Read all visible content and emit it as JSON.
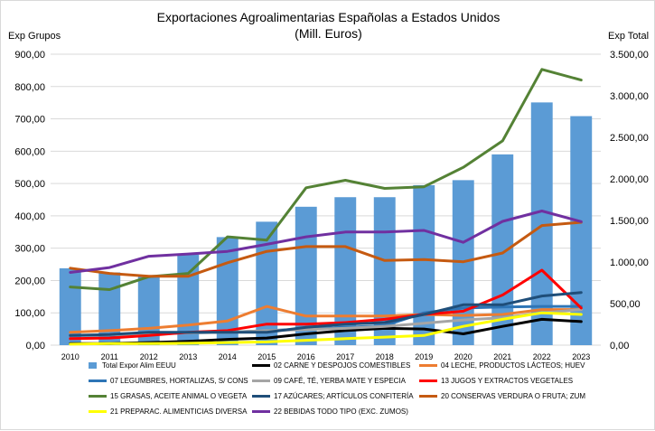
{
  "chart_data": {
    "type": "bar+line",
    "title_line1": "Exportaciones Agroalimentarias Españolas a Estados Unidos",
    "title_line2": "(Mill. Euros)",
    "ylabel_left": "Exp Grupos",
    "ylabel_right": "Exp Total",
    "ylim_left": [
      0,
      900
    ],
    "ylim_right": [
      0,
      3500
    ],
    "yticks_left": [
      "0,00",
      "100,00",
      "200,00",
      "300,00",
      "400,00",
      "500,00",
      "600,00",
      "700,00",
      "800,00",
      "900,00"
    ],
    "yticks_right": [
      "0,00",
      "500,00",
      "1.000,00",
      "1.500,00",
      "2.000,00",
      "2.500,00",
      "3.000,00",
      "3.500,00"
    ],
    "categories": [
      "2010",
      "2011",
      "2012",
      "2013",
      "2014",
      "2015",
      "2016",
      "2017",
      "2018",
      "2019",
      "2020",
      "2021",
      "2022",
      "2023"
    ],
    "bar_series": {
      "name": "Total Expor Alim EEUU",
      "color": "#5b9bd5",
      "axis": "right",
      "values": [
        925,
        875,
        840,
        1090,
        1300,
        1485,
        1665,
        1780,
        1780,
        1925,
        1985,
        2295,
        2920,
        2755
      ]
    },
    "series": [
      {
        "name": "02 CARNE Y DESPOJOS COMESTIBLES",
        "color": "#000000",
        "values": [
          5,
          5,
          8,
          12,
          18,
          22,
          35,
          45,
          52,
          50,
          35,
          58,
          80,
          73
        ]
      },
      {
        "name": "04 LECHE, PRODUCTOS LÁCTEOS; HUEV",
        "color": "#ed7d31",
        "values": [
          40,
          45,
          52,
          62,
          75,
          120,
          90,
          90,
          90,
          95,
          92,
          95,
          110,
          110
        ]
      },
      {
        "name": "07 LEGUMBRES, HORTALIZAS, S/ CONS",
        "color": "#2e75b6",
        "values": [
          30,
          30,
          35,
          38,
          40,
          45,
          50,
          55,
          60,
          100,
          115,
          118,
          120,
          120
        ]
      },
      {
        "name": "09 CAFÉ, TÉ, YERBA MATE Y ESPECIA",
        "color": "#a5a5a5",
        "values": [
          30,
          32,
          35,
          38,
          40,
          45,
          48,
          52,
          58,
          68,
          78,
          85,
          100,
          110
        ]
      },
      {
        "name": "13 JUGOS Y EXTRACTOS VEGETALES",
        "color": "#ff0000",
        "values": [
          20,
          22,
          30,
          40,
          45,
          65,
          65,
          70,
          80,
          95,
          105,
          155,
          232,
          115
        ]
      },
      {
        "name": "15 GRASAS, ACEITE ANIMAL O VEGETA",
        "color": "#548235",
        "values": [
          180,
          172,
          212,
          222,
          335,
          325,
          487,
          510,
          485,
          490,
          550,
          632,
          853,
          820
        ]
      },
      {
        "name": "17 AZÚCARES; ARTÍCULOS CONFITERÍA",
        "color": "#1f4e79",
        "values": [
          30,
          33,
          40,
          40,
          40,
          40,
          55,
          65,
          70,
          95,
          125,
          125,
          152,
          163
        ]
      },
      {
        "name": "20 CONSERVAS VERDURA O FRUTA; ZUM",
        "color": "#c55a11",
        "values": [
          238,
          222,
          213,
          213,
          255,
          290,
          305,
          305,
          262,
          265,
          258,
          285,
          370,
          380
        ]
      },
      {
        "name": "21 PREPARAC. ALIMENTICIAS DIVERSA",
        "color": "#ffff00",
        "values": [
          3,
          5,
          5,
          6,
          8,
          10,
          15,
          20,
          25,
          30,
          58,
          80,
          100,
          95
        ]
      },
      {
        "name": "22 BEBIDAS TODO TIPO (EXC. ZUMOS)",
        "color": "#7030a0",
        "values": [
          225,
          240,
          275,
          282,
          290,
          312,
          335,
          350,
          350,
          355,
          318,
          383,
          415,
          382
        ]
      }
    ],
    "legend_position": "bottom",
    "grid": true
  }
}
